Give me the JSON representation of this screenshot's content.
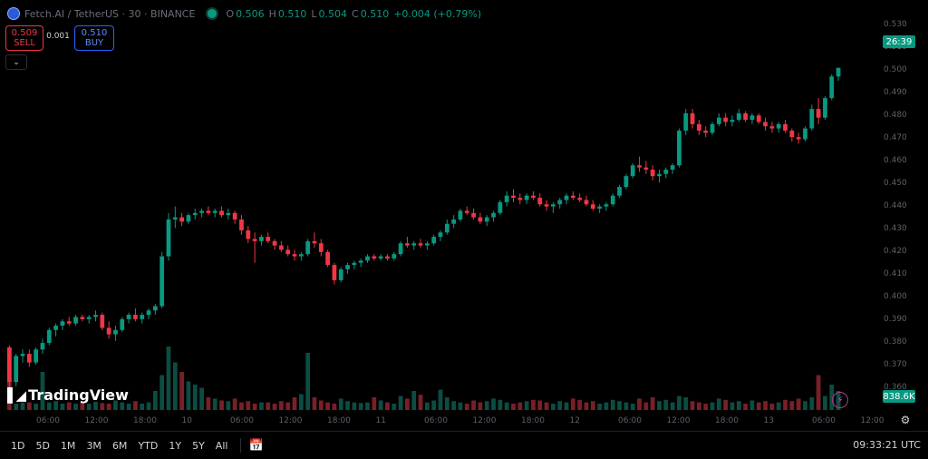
{
  "header": {
    "symbol": "Fetch.AI / TetherUS",
    "interval": "30",
    "exchange": "BINANCE",
    "o_label": "O",
    "o": "0.506",
    "h_label": "H",
    "h": "0.510",
    "l_label": "L",
    "l": "0.504",
    "c_label": "C",
    "c": "0.510",
    "change": "+0.004 (+0.79%)"
  },
  "trade": {
    "sell_price": "0.509",
    "sell_label": "SELL",
    "spread": "0.001",
    "buy_price": "0.510",
    "buy_label": "BUY"
  },
  "price_axis": [
    "0.530",
    "0.510",
    "0.500",
    "0.490",
    "0.480",
    "0.470",
    "0.460",
    "0.450",
    "0.440",
    "0.430",
    "0.420",
    "0.410",
    "0.400",
    "0.390",
    "0.380",
    "0.370",
    "0.360"
  ],
  "last_price_tag": "26:39",
  "volume_tag": "838.6K",
  "time_axis": [
    "06:00",
    "12:00",
    "18:00",
    "10",
    "06:00",
    "12:00",
    "18:00",
    "11",
    "06:00",
    "12:00",
    "18:00",
    "12",
    "06:00",
    "12:00",
    "18:00",
    "13",
    "06:00",
    "12:00"
  ],
  "logo_text": "TradingView",
  "bottom": {
    "ranges": [
      "1D",
      "5D",
      "1M",
      "3M",
      "6M",
      "YTD",
      "1Y",
      "5Y",
      "All"
    ],
    "clock": "09:33:21 UTC"
  },
  "colors": {
    "up": "#089981",
    "down": "#f23645",
    "bg": "#000000"
  },
  "chart_data": {
    "type": "candlestick",
    "symbol": "FETUSDT",
    "interval": "30m",
    "ylim": [
      0.355,
      0.535
    ],
    "candles": [
      [
        0.381,
        0.382,
        0.361,
        0.365
      ],
      [
        0.365,
        0.378,
        0.363,
        0.377
      ],
      [
        0.377,
        0.38,
        0.374,
        0.378
      ],
      [
        0.378,
        0.38,
        0.372,
        0.374
      ],
      [
        0.374,
        0.381,
        0.373,
        0.38
      ],
      [
        0.38,
        0.385,
        0.378,
        0.383
      ],
      [
        0.383,
        0.39,
        0.382,
        0.389
      ],
      [
        0.389,
        0.392,
        0.386,
        0.391
      ],
      [
        0.391,
        0.394,
        0.389,
        0.393
      ],
      [
        0.393,
        0.395,
        0.391,
        0.392
      ],
      [
        0.392,
        0.396,
        0.391,
        0.395
      ],
      [
        0.395,
        0.396,
        0.393,
        0.394
      ],
      [
        0.394,
        0.396,
        0.392,
        0.395
      ],
      [
        0.395,
        0.398,
        0.393,
        0.396
      ],
      [
        0.396,
        0.397,
        0.389,
        0.39
      ],
      [
        0.39,
        0.393,
        0.385,
        0.387
      ],
      [
        0.387,
        0.391,
        0.384,
        0.389
      ],
      [
        0.389,
        0.395,
        0.388,
        0.394
      ],
      [
        0.394,
        0.397,
        0.392,
        0.396
      ],
      [
        0.396,
        0.399,
        0.393,
        0.394
      ],
      [
        0.394,
        0.397,
        0.392,
        0.396
      ],
      [
        0.396,
        0.399,
        0.394,
        0.398
      ],
      [
        0.398,
        0.401,
        0.396,
        0.4
      ],
      [
        0.4,
        0.425,
        0.399,
        0.423
      ],
      [
        0.423,
        0.443,
        0.421,
        0.44
      ],
      [
        0.44,
        0.446,
        0.436,
        0.441
      ],
      [
        0.441,
        0.443,
        0.437,
        0.439
      ],
      [
        0.439,
        0.443,
        0.438,
        0.442
      ],
      [
        0.442,
        0.445,
        0.44,
        0.443
      ],
      [
        0.443,
        0.445,
        0.441,
        0.444
      ],
      [
        0.444,
        0.446,
        0.442,
        0.443
      ],
      [
        0.443,
        0.445,
        0.441,
        0.444
      ],
      [
        0.444,
        0.446,
        0.441,
        0.442
      ],
      [
        0.442,
        0.445,
        0.44,
        0.443
      ],
      [
        0.443,
        0.444,
        0.438,
        0.44
      ],
      [
        0.44,
        0.442,
        0.433,
        0.435
      ],
      [
        0.435,
        0.437,
        0.429,
        0.431
      ],
      [
        0.431,
        0.434,
        0.42,
        0.43
      ],
      [
        0.43,
        0.433,
        0.428,
        0.432
      ],
      [
        0.432,
        0.434,
        0.429,
        0.43
      ],
      [
        0.43,
        0.431,
        0.426,
        0.428
      ],
      [
        0.428,
        0.43,
        0.425,
        0.426
      ],
      [
        0.426,
        0.428,
        0.423,
        0.424
      ],
      [
        0.424,
        0.426,
        0.421,
        0.423
      ],
      [
        0.423,
        0.425,
        0.421,
        0.424
      ],
      [
        0.424,
        0.431,
        0.423,
        0.43
      ],
      [
        0.43,
        0.434,
        0.427,
        0.429
      ],
      [
        0.429,
        0.431,
        0.423,
        0.425
      ],
      [
        0.425,
        0.426,
        0.418,
        0.419
      ],
      [
        0.419,
        0.42,
        0.41,
        0.412
      ],
      [
        0.412,
        0.418,
        0.411,
        0.417
      ],
      [
        0.417,
        0.42,
        0.415,
        0.419
      ],
      [
        0.419,
        0.421,
        0.417,
        0.42
      ],
      [
        0.42,
        0.422,
        0.418,
        0.421
      ],
      [
        0.421,
        0.424,
        0.42,
        0.423
      ],
      [
        0.423,
        0.424,
        0.421,
        0.422
      ],
      [
        0.422,
        0.424,
        0.421,
        0.423
      ],
      [
        0.423,
        0.424,
        0.421,
        0.422
      ],
      [
        0.422,
        0.425,
        0.421,
        0.424
      ],
      [
        0.424,
        0.43,
        0.423,
        0.429
      ],
      [
        0.429,
        0.432,
        0.427,
        0.428
      ],
      [
        0.428,
        0.43,
        0.426,
        0.429
      ],
      [
        0.429,
        0.431,
        0.427,
        0.428
      ],
      [
        0.428,
        0.43,
        0.426,
        0.429
      ],
      [
        0.429,
        0.433,
        0.428,
        0.432
      ],
      [
        0.432,
        0.435,
        0.43,
        0.434
      ],
      [
        0.434,
        0.44,
        0.433,
        0.438
      ],
      [
        0.438,
        0.442,
        0.436,
        0.44
      ],
      [
        0.44,
        0.445,
        0.439,
        0.444
      ],
      [
        0.444,
        0.446,
        0.442,
        0.443
      ],
      [
        0.443,
        0.445,
        0.44,
        0.441
      ],
      [
        0.441,
        0.443,
        0.438,
        0.439
      ],
      [
        0.439,
        0.442,
        0.437,
        0.441
      ],
      [
        0.441,
        0.444,
        0.439,
        0.443
      ],
      [
        0.443,
        0.449,
        0.442,
        0.448
      ],
      [
        0.448,
        0.453,
        0.446,
        0.451
      ],
      [
        0.451,
        0.454,
        0.448,
        0.45
      ],
      [
        0.45,
        0.452,
        0.447,
        0.449
      ],
      [
        0.449,
        0.452,
        0.447,
        0.451
      ],
      [
        0.451,
        0.453,
        0.449,
        0.45
      ],
      [
        0.45,
        0.452,
        0.446,
        0.447
      ],
      [
        0.447,
        0.449,
        0.444,
        0.446
      ],
      [
        0.446,
        0.448,
        0.443,
        0.447
      ],
      [
        0.447,
        0.45,
        0.445,
        0.449
      ],
      [
        0.449,
        0.452,
        0.447,
        0.451
      ],
      [
        0.451,
        0.453,
        0.449,
        0.45
      ],
      [
        0.45,
        0.452,
        0.448,
        0.449
      ],
      [
        0.449,
        0.451,
        0.446,
        0.447
      ],
      [
        0.447,
        0.449,
        0.444,
        0.445
      ],
      [
        0.445,
        0.447,
        0.443,
        0.446
      ],
      [
        0.446,
        0.448,
        0.444,
        0.447
      ],
      [
        0.447,
        0.452,
        0.446,
        0.451
      ],
      [
        0.451,
        0.456,
        0.45,
        0.455
      ],
      [
        0.455,
        0.461,
        0.454,
        0.46
      ],
      [
        0.46,
        0.466,
        0.459,
        0.465
      ],
      [
        0.465,
        0.469,
        0.462,
        0.464
      ],
      [
        0.464,
        0.467,
        0.461,
        0.463
      ],
      [
        0.463,
        0.465,
        0.458,
        0.46
      ],
      [
        0.46,
        0.463,
        0.457,
        0.461
      ],
      [
        0.461,
        0.464,
        0.459,
        0.463
      ],
      [
        0.463,
        0.466,
        0.461,
        0.465
      ],
      [
        0.465,
        0.482,
        0.464,
        0.481
      ],
      [
        0.481,
        0.491,
        0.479,
        0.489
      ],
      [
        0.489,
        0.491,
        0.482,
        0.484
      ],
      [
        0.484,
        0.486,
        0.479,
        0.481
      ],
      [
        0.481,
        0.483,
        0.478,
        0.48
      ],
      [
        0.48,
        0.485,
        0.479,
        0.484
      ],
      [
        0.484,
        0.489,
        0.483,
        0.487
      ],
      [
        0.487,
        0.489,
        0.483,
        0.485
      ],
      [
        0.485,
        0.488,
        0.483,
        0.486
      ],
      [
        0.486,
        0.491,
        0.485,
        0.489
      ],
      [
        0.489,
        0.49,
        0.485,
        0.486
      ],
      [
        0.486,
        0.489,
        0.484,
        0.488
      ],
      [
        0.488,
        0.489,
        0.484,
        0.485
      ],
      [
        0.485,
        0.487,
        0.481,
        0.483
      ],
      [
        0.483,
        0.485,
        0.48,
        0.482
      ],
      [
        0.482,
        0.485,
        0.48,
        0.484
      ],
      [
        0.484,
        0.486,
        0.48,
        0.481
      ],
      [
        0.481,
        0.482,
        0.476,
        0.478
      ],
      [
        0.478,
        0.48,
        0.475,
        0.477
      ],
      [
        0.477,
        0.483,
        0.476,
        0.482
      ],
      [
        0.482,
        0.493,
        0.481,
        0.491
      ],
      [
        0.491,
        0.496,
        0.484,
        0.487
      ],
      [
        0.487,
        0.497,
        0.486,
        0.496
      ],
      [
        0.496,
        0.507,
        0.495,
        0.506
      ],
      [
        0.506,
        0.51,
        0.504,
        0.51
      ]
    ],
    "volume": [
      0.45,
      0.1,
      0.12,
      0.12,
      0.1,
      0.6,
      0.12,
      0.14,
      0.1,
      0.12,
      0.1,
      0.12,
      0.1,
      0.13,
      0.11,
      0.1,
      0.15,
      0.12,
      0.1,
      0.14,
      0.1,
      0.12,
      0.3,
      0.55,
      1.0,
      0.75,
      0.6,
      0.45,
      0.4,
      0.35,
      0.2,
      0.18,
      0.15,
      0.14,
      0.18,
      0.12,
      0.14,
      0.1,
      0.12,
      0.12,
      0.1,
      0.14,
      0.12,
      0.2,
      0.25,
      0.9,
      0.2,
      0.15,
      0.12,
      0.1,
      0.18,
      0.14,
      0.12,
      0.11,
      0.12,
      0.2,
      0.15,
      0.12,
      0.1,
      0.22,
      0.18,
      0.3,
      0.24,
      0.12,
      0.15,
      0.32,
      0.2,
      0.14,
      0.12,
      0.1,
      0.15,
      0.12,
      0.14,
      0.18,
      0.16,
      0.12,
      0.1,
      0.12,
      0.14,
      0.16,
      0.15,
      0.12,
      0.1,
      0.14,
      0.12,
      0.18,
      0.16,
      0.12,
      0.14,
      0.1,
      0.12,
      0.16,
      0.14,
      0.12,
      0.1,
      0.18,
      0.12,
      0.2,
      0.14,
      0.16,
      0.12,
      0.22,
      0.2,
      0.14,
      0.12,
      0.1,
      0.12,
      0.18,
      0.16,
      0.12,
      0.14,
      0.1,
      0.15,
      0.12,
      0.14,
      0.1,
      0.12,
      0.16,
      0.14,
      0.18,
      0.14,
      0.2,
      0.55,
      0.22,
      0.4,
      0.3
    ]
  }
}
